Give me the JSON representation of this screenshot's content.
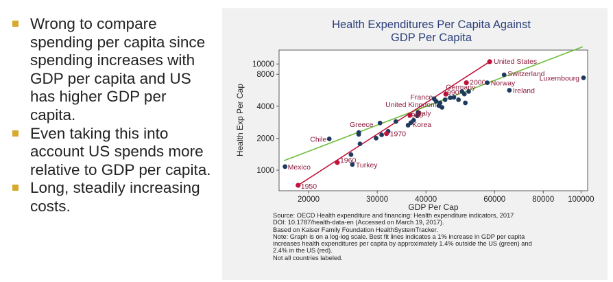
{
  "bullets": [
    "Wrong to compare spending per capita since spending increases with GDP per capita and US has higher GDP per capita.",
    "Even taking this into account US spends more relative to GDP per capita.",
    "Long, steadily increasing costs."
  ],
  "colors": {
    "bullet": "#d7a92c",
    "green_line": "#6cbf3c",
    "red_line": "#c0143c",
    "point": "#1f3a5f",
    "us_point": "#c0143c",
    "label": "#8b1a3a",
    "title": "#2a3f7a"
  },
  "source_lines": [
    "Source: OECD Health expenditure and financing: Health expenditure indicators, 2017",
    "DOI: 10.1787/health-data-en (Accessed on March 19, 2017).",
    "Based on Kaiser Family Foundation HealthSystemTracker.",
    "Note: Graph is on a log-log scale. Best fit lines indicates a 1% increase in GDP per capita",
    "increases health expenditures per capita by approximately 1.4% outside the US (green) and",
    "2.4% in the US (red).",
    "Not all countries labeled."
  ],
  "chart_data": {
    "type": "scatter",
    "title": "Health Expenditures Per Capita Against GDP Per Capita",
    "title_lines": [
      "Health Expenditures Per Capita Against",
      "GDP Per Capita"
    ],
    "xlabel": "GDP Per Cap",
    "ylabel": "Health Exp Per Cap",
    "xscale": "log",
    "yscale": "log",
    "xlim": [
      16800,
      104000
    ],
    "ylim": [
      640,
      13500
    ],
    "xticks": [
      20000,
      30000,
      40000,
      60000,
      80000,
      100000
    ],
    "xtick_labels": [
      "20000",
      "30000",
      "40000",
      "60000",
      "80000",
      "100000"
    ],
    "yticks": [
      1000,
      2000,
      4000,
      8000,
      10000
    ],
    "ytick_labels": [
      "1000",
      "2000",
      "4000",
      "8000",
      "10000"
    ],
    "grid": false,
    "points": [
      {
        "x": 17400,
        "y": 1080
      },
      {
        "x": 22600,
        "y": 1970
      },
      {
        "x": 25700,
        "y": 1400
      },
      {
        "x": 25900,
        "y": 1130
      },
      {
        "x": 26900,
        "y": 2170
      },
      {
        "x": 26900,
        "y": 2260
      },
      {
        "x": 27100,
        "y": 1770
      },
      {
        "x": 29800,
        "y": 2000
      },
      {
        "x": 30500,
        "y": 2780
      },
      {
        "x": 30800,
        "y": 2150
      },
      {
        "x": 32000,
        "y": 2320
      },
      {
        "x": 33500,
        "y": 2870
      },
      {
        "x": 36000,
        "y": 2650
      },
      {
        "x": 36600,
        "y": 2800
      },
      {
        "x": 37200,
        "y": 2950
      },
      {
        "x": 38000,
        "y": 3250
      },
      {
        "x": 38100,
        "y": 3350
      },
      {
        "x": 38200,
        "y": 3500
      },
      {
        "x": 42000,
        "y": 4700
      },
      {
        "x": 42500,
        "y": 4450
      },
      {
        "x": 43200,
        "y": 4050
      },
      {
        "x": 43500,
        "y": 4300
      },
      {
        "x": 44000,
        "y": 3900
      },
      {
        "x": 44800,
        "y": 4600
      },
      {
        "x": 46200,
        "y": 4800
      },
      {
        "x": 47200,
        "y": 4850
      },
      {
        "x": 48500,
        "y": 4600
      },
      {
        "x": 49500,
        "y": 5500
      },
      {
        "x": 50200,
        "y": 5200
      },
      {
        "x": 50500,
        "y": 4300
      },
      {
        "x": 51500,
        "y": 5500
      },
      {
        "x": 57500,
        "y": 6650
      },
      {
        "x": 63500,
        "y": 7900
      },
      {
        "x": 65500,
        "y": 5650
      },
      {
        "x": 101500,
        "y": 7400
      }
    ],
    "point_labels": [
      {
        "text": "Mexico",
        "x": 17400,
        "y": 1080
      },
      {
        "text": "Chile",
        "x": 22600,
        "y": 1970
      },
      {
        "text": "Turkey",
        "x": 25900,
        "y": 1130
      },
      {
        "text": "Greece",
        "x": 26900,
        "y": 2260
      },
      {
        "text": "Italy",
        "x": 37200,
        "y": 3350
      },
      {
        "text": "Korea",
        "x": 36600,
        "y": 2800
      },
      {
        "text": "France",
        "x": 42000,
        "y": 4700
      },
      {
        "text": "United Kingdom",
        "x": 43500,
        "y": 4300
      },
      {
        "text": "Germany",
        "x": 49500,
        "y": 5500
      },
      {
        "text": "Norway",
        "x": 57500,
        "y": 6650
      },
      {
        "text": "Switzerland",
        "x": 63500,
        "y": 7900
      },
      {
        "text": "Ireland",
        "x": 65500,
        "y": 5650
      },
      {
        "text": "Luxembourg",
        "x": 101500,
        "y": 7400
      }
    ],
    "us_series": {
      "points": [
        {
          "x": 18800,
          "y": 720,
          "label": "1950"
        },
        {
          "x": 23700,
          "y": 1180,
          "label": "1960"
        },
        {
          "x": 31700,
          "y": 2210,
          "label": "1970"
        },
        {
          "x": 36400,
          "y": 3300,
          "label": "1980"
        },
        {
          "x": 45000,
          "y": 5200,
          "label": "1990"
        },
        {
          "x": 50800,
          "y": 6650,
          "label": "2000"
        },
        {
          "x": 58300,
          "y": 10500,
          "label": "United States"
        }
      ]
    },
    "fit_lines": [
      {
        "color": "green",
        "x1": 17300,
        "y1": 1230,
        "x2": 101000,
        "y2": 14500
      },
      {
        "color": "red",
        "x1": 18800,
        "y1": 720,
        "x2": 58300,
        "y2": 10500
      }
    ]
  }
}
